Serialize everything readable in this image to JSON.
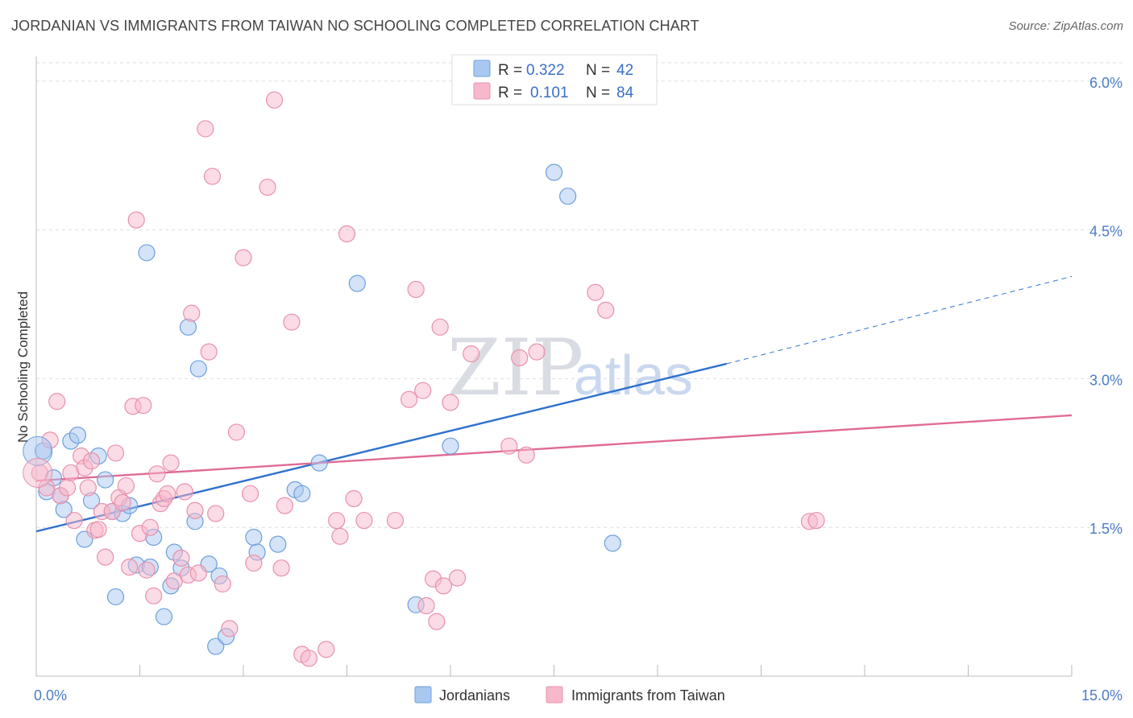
{
  "header": {
    "title": "JORDANIAN VS IMMIGRANTS FROM TAIWAN NO SCHOOLING COMPLETED CORRELATION CHART",
    "source": "Source: ZipAtlas.com"
  },
  "watermark": {
    "zip": "ZIP",
    "atlas": "atlas"
  },
  "legend": {
    "r_label": "R =",
    "n_label": "N =",
    "rows": [
      {
        "r": "0.322",
        "n": "42",
        "color": "#a9c8f0"
      },
      {
        "r": "0.101",
        "n": "84",
        "color": "#f7b8cb"
      }
    ]
  },
  "bottom_legend": [
    "Jordanians",
    "Immigrants from Taiwan"
  ],
  "chart_data": {
    "type": "scatter",
    "title": "JORDANIAN VS IMMIGRANTS FROM TAIWAN NO SCHOOLING COMPLETED CORRELATION CHART",
    "xlabel": "",
    "ylabel": "No Schooling Completed",
    "xlim": [
      0,
      15
    ],
    "ylim": [
      0,
      6.25
    ],
    "x_tick_labels": [
      "0.0%",
      "15.0%"
    ],
    "y_ticks": [
      1.5,
      3.0,
      4.5,
      6.0
    ],
    "y_tick_labels": [
      "1.5%",
      "3.0%",
      "4.5%",
      "6.0%"
    ],
    "grid": true,
    "legend_position": "top-center",
    "series": [
      {
        "name": "Jordanians",
        "color": "#a9c8f0",
        "stroke": "#6b9fdc",
        "line_color": "#2f72cc",
        "trend": {
          "x": [
            0,
            10.0
          ],
          "y": [
            1.46,
            3.15
          ],
          "dashed_to": [
            15.0,
            4.03
          ]
        },
        "points": [
          [
            0.1,
            2.27
          ],
          [
            0.15,
            1.86
          ],
          [
            0.25,
            2.0
          ],
          [
            0.35,
            1.82
          ],
          [
            0.4,
            1.68
          ],
          [
            0.5,
            2.37
          ],
          [
            0.6,
            2.43
          ],
          [
            0.7,
            1.38
          ],
          [
            0.8,
            1.77
          ],
          [
            0.9,
            2.22
          ],
          [
            1.0,
            1.98
          ],
          [
            1.1,
            1.66
          ],
          [
            1.25,
            1.64
          ],
          [
            1.35,
            1.72
          ],
          [
            1.45,
            1.12
          ],
          [
            1.6,
            4.27
          ],
          [
            1.65,
            1.1
          ],
          [
            1.7,
            1.4
          ],
          [
            1.85,
            0.6
          ],
          [
            1.95,
            0.91
          ],
          [
            2.0,
            1.25
          ],
          [
            2.1,
            1.09
          ],
          [
            2.2,
            3.52
          ],
          [
            2.3,
            1.56
          ],
          [
            2.35,
            3.1
          ],
          [
            2.5,
            1.13
          ],
          [
            2.6,
            0.3
          ],
          [
            2.65,
            1.01
          ],
          [
            2.75,
            0.4
          ],
          [
            3.15,
            1.4
          ],
          [
            3.2,
            1.25
          ],
          [
            3.5,
            1.33
          ],
          [
            3.75,
            1.88
          ],
          [
            3.85,
            1.84
          ],
          [
            4.1,
            2.15
          ],
          [
            4.65,
            3.96
          ],
          [
            5.5,
            0.72
          ],
          [
            6.0,
            2.32
          ],
          [
            7.5,
            5.08
          ],
          [
            7.7,
            4.84
          ],
          [
            8.35,
            1.34
          ],
          [
            1.15,
            0.8
          ]
        ]
      },
      {
        "name": "Immigrants from Taiwan",
        "color": "#f7b8cb",
        "stroke": "#e890ab",
        "line_color": "#e06b96",
        "trend": {
          "x": [
            0,
            15.0
          ],
          "y": [
            1.97,
            2.63
          ]
        },
        "points": [
          [
            0.05,
            2.05
          ],
          [
            0.15,
            1.9
          ],
          [
            0.2,
            2.38
          ],
          [
            0.3,
            2.77
          ],
          [
            0.35,
            1.82
          ],
          [
            0.45,
            1.9
          ],
          [
            0.5,
            2.05
          ],
          [
            0.55,
            1.57
          ],
          [
            0.65,
            2.22
          ],
          [
            0.7,
            2.1
          ],
          [
            0.75,
            1.9
          ],
          [
            0.8,
            2.17
          ],
          [
            0.85,
            1.47
          ],
          [
            0.9,
            1.48
          ],
          [
            0.95,
            1.66
          ],
          [
            1.0,
            1.2
          ],
          [
            1.1,
            1.66
          ],
          [
            1.15,
            2.25
          ],
          [
            1.2,
            1.8
          ],
          [
            1.25,
            1.75
          ],
          [
            1.3,
            1.92
          ],
          [
            1.35,
            1.1
          ],
          [
            1.4,
            2.72
          ],
          [
            1.45,
            4.6
          ],
          [
            1.5,
            1.44
          ],
          [
            1.55,
            2.73
          ],
          [
            1.6,
            1.07
          ],
          [
            1.65,
            1.5
          ],
          [
            1.7,
            0.81
          ],
          [
            1.75,
            2.04
          ],
          [
            1.8,
            1.74
          ],
          [
            1.85,
            1.79
          ],
          [
            1.9,
            1.84
          ],
          [
            1.95,
            2.15
          ],
          [
            2.0,
            0.96
          ],
          [
            2.1,
            1.19
          ],
          [
            2.15,
            1.86
          ],
          [
            2.2,
            1.02
          ],
          [
            2.25,
            3.66
          ],
          [
            2.3,
            1.67
          ],
          [
            2.35,
            1.04
          ],
          [
            2.45,
            5.52
          ],
          [
            2.5,
            3.27
          ],
          [
            2.55,
            5.04
          ],
          [
            2.6,
            1.64
          ],
          [
            2.7,
            0.93
          ],
          [
            2.8,
            0.48
          ],
          [
            2.9,
            2.46
          ],
          [
            3.0,
            4.22
          ],
          [
            3.1,
            1.84
          ],
          [
            3.15,
            1.14
          ],
          [
            3.35,
            4.93
          ],
          [
            3.45,
            5.81
          ],
          [
            3.55,
            1.09
          ],
          [
            3.6,
            1.72
          ],
          [
            3.7,
            3.57
          ],
          [
            3.85,
            0.22
          ],
          [
            3.95,
            0.18
          ],
          [
            4.2,
            0.27
          ],
          [
            4.35,
            1.57
          ],
          [
            4.4,
            1.41
          ],
          [
            4.5,
            4.46
          ],
          [
            4.6,
            1.79
          ],
          [
            4.75,
            1.57
          ],
          [
            5.2,
            1.57
          ],
          [
            5.4,
            2.79
          ],
          [
            5.5,
            3.9
          ],
          [
            5.6,
            2.88
          ],
          [
            5.65,
            0.71
          ],
          [
            5.75,
            0.98
          ],
          [
            5.8,
            0.55
          ],
          [
            5.85,
            3.52
          ],
          [
            5.9,
            0.91
          ],
          [
            6.0,
            2.76
          ],
          [
            6.1,
            0.99
          ],
          [
            6.3,
            3.25
          ],
          [
            6.85,
            2.32
          ],
          [
            7.0,
            3.21
          ],
          [
            7.1,
            2.23
          ],
          [
            7.25,
            3.27
          ],
          [
            8.1,
            3.87
          ],
          [
            8.25,
            3.69
          ],
          [
            11.2,
            1.56
          ],
          [
            11.3,
            1.57
          ]
        ]
      }
    ]
  }
}
